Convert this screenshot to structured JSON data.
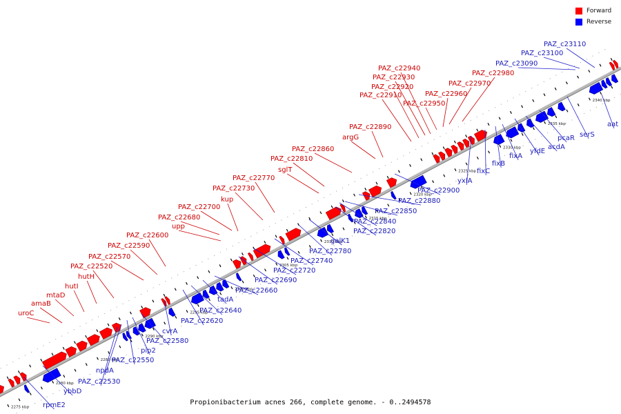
{
  "legend": {
    "forward_label": "Forward",
    "reverse_label": "Reverse"
  },
  "colors": {
    "forward": "#ff0000",
    "reverse": "#0000ff",
    "forward_label": "#cc0000",
    "reverse_label": "#1a1ab8",
    "backbone": "#b8b8b8"
  },
  "caption": "Propionibacterium acnes 266, complete genome. - 0..2494578",
  "chart_data": {
    "type": "genome-map",
    "range_kbp": [
      2273,
      2343
    ],
    "scale_labels": [
      {
        "kbp": 2275,
        "label": "2275 kbp"
      },
      {
        "kbp": 2280,
        "label": "2280 kbp"
      },
      {
        "kbp": 2285,
        "label": "2285 kbp"
      },
      {
        "kbp": 2290,
        "label": "2290 kbp"
      },
      {
        "kbp": 2295,
        "label": "2295 kbp"
      },
      {
        "kbp": 2300,
        "label": "2300 kbp"
      },
      {
        "kbp": 2305,
        "label": "2305 kbp"
      },
      {
        "kbp": 2310,
        "label": "2310 kbp"
      },
      {
        "kbp": 2315,
        "label": "2315 kbp"
      },
      {
        "kbp": 2320,
        "label": "2320 kbp"
      },
      {
        "kbp": 2325,
        "label": "2325 kbp"
      },
      {
        "kbp": 2330,
        "label": "2330 kbp"
      },
      {
        "kbp": 2335,
        "label": "2335 kbp"
      },
      {
        "kbp": 2340,
        "label": "2340 kbp"
      }
    ],
    "forward_genes": [
      {
        "name": "",
        "start": 2273.0,
        "end": 2274.5
      },
      {
        "name": "",
        "start": 2275.2,
        "end": 2275.6
      },
      {
        "name": "",
        "start": 2275.8,
        "end": 2276.3
      },
      {
        "name": "",
        "start": 2276.5,
        "end": 2277.0
      },
      {
        "name": "uroC",
        "start": 2279.0,
        "end": 2281.5
      },
      {
        "name": "amaB",
        "start": 2281.6,
        "end": 2282.6
      },
      {
        "name": "mtaD",
        "start": 2282.8,
        "end": 2283.8
      },
      {
        "name": "hutI",
        "start": 2284.0,
        "end": 2285.2
      },
      {
        "name": "hutH",
        "start": 2285.4,
        "end": 2286.6
      },
      {
        "name": "PAZ_c22520",
        "start": 2286.8,
        "end": 2287.6
      },
      {
        "name": "PAZ_c22570",
        "start": 2289.9,
        "end": 2290.9
      },
      {
        "name": "PAZ_c22590",
        "start": 2292.3,
        "end": 2292.6
      },
      {
        "name": "PAZ_c22600",
        "start": 2292.7,
        "end": 2293.0
      },
      {
        "name": "PAZ_c22680",
        "start": 2300.3,
        "end": 2301.0
      },
      {
        "name": "upp",
        "start": 2301.1,
        "end": 2301.6
      },
      {
        "name": "PAZ_c22700",
        "start": 2302.0,
        "end": 2302.3
      },
      {
        "name": "kup",
        "start": 2302.6,
        "end": 2304.3
      },
      {
        "name": "PAZ_c22730",
        "start": 2305.5,
        "end": 2305.8
      },
      {
        "name": "PAZ_c22770",
        "start": 2306.2,
        "end": 2307.7
      },
      {
        "name": "sglT",
        "start": 2310.7,
        "end": 2312.2
      },
      {
        "name": "PAZ_c22810",
        "start": 2312.3,
        "end": 2312.6
      },
      {
        "name": "PAZ_c22860",
        "start": 2314.8,
        "end": 2315.4
      },
      {
        "name": "argG",
        "start": 2315.5,
        "end": 2316.7
      },
      {
        "name": "PAZ_c22890",
        "start": 2317.5,
        "end": 2318.4
      },
      {
        "name": "PAZ_c22910",
        "start": 2322.7,
        "end": 2323.2
      },
      {
        "name": "PAZ_c22920",
        "start": 2323.3,
        "end": 2323.8
      },
      {
        "name": "PAZ_c22930",
        "start": 2324.0,
        "end": 2324.6
      },
      {
        "name": "PAZ_c22940",
        "start": 2324.7,
        "end": 2325.2
      },
      {
        "name": "PAZ_c22950",
        "start": 2325.4,
        "end": 2325.9
      },
      {
        "name": "PAZ_c22960",
        "start": 2326.0,
        "end": 2326.5
      },
      {
        "name": "PAZ_c22970",
        "start": 2326.6,
        "end": 2327.1
      },
      {
        "name": "PAZ_c22980",
        "start": 2327.3,
        "end": 2328.5
      },
      {
        "name": "",
        "start": 2342.4,
        "end": 2342.7
      },
      {
        "name": "",
        "start": 2342.8,
        "end": 2343.1
      }
    ],
    "reverse_genes": [
      {
        "name": "rpmE2",
        "start": 2276.2,
        "end": 2276.5
      },
      {
        "name": "ybbD",
        "start": 2278.2,
        "end": 2280.0
      },
      {
        "name": "PAZ_c22530",
        "start": 2287.2,
        "end": 2287.5
      },
      {
        "name": "npdA",
        "start": 2287.6,
        "end": 2287.9
      },
      {
        "name": "PAZ_c22550",
        "start": 2288.3,
        "end": 2288.8
      },
      {
        "name": "pip2",
        "start": 2288.9,
        "end": 2289.5
      },
      {
        "name": "",
        "start": 2289.6,
        "end": 2290.6
      },
      {
        "name": "PAZ_c22580",
        "start": 2292.3,
        "end": 2292.8
      },
      {
        "name": "cvrA",
        "start": 2294.8,
        "end": 2296.0
      },
      {
        "name": "PAZ_c22620",
        "start": 2296.1,
        "end": 2296.6
      },
      {
        "name": "PAZ_c22640",
        "start": 2296.8,
        "end": 2297.5
      },
      {
        "name": "tadA",
        "start": 2297.6,
        "end": 2298.2
      },
      {
        "name": "PAZ_c22660",
        "start": 2298.3,
        "end": 2298.8
      },
      {
        "name": "PAZ_c22690",
        "start": 2299.9,
        "end": 2300.2
      },
      {
        "name": "PAZ_c22720",
        "start": 2304.5,
        "end": 2305.0
      },
      {
        "name": "PAZ_c22740",
        "start": 2305.3,
        "end": 2305.6
      },
      {
        "name": "PAZ_c22780",
        "start": 2308.9,
        "end": 2309.9
      },
      {
        "name": "galK1",
        "start": 2310.0,
        "end": 2310.5
      },
      {
        "name": "PAZ_c22820",
        "start": 2312.4,
        "end": 2312.7
      },
      {
        "name": "PAZ_c22840",
        "start": 2313.1,
        "end": 2313.8
      },
      {
        "name": "PAZ_c22850",
        "start": 2313.9,
        "end": 2314.3
      },
      {
        "name": "PAZ_c22880",
        "start": 2317.2,
        "end": 2317.5
      },
      {
        "name": "PAZ_c22900",
        "start": 2319.3,
        "end": 2320.9
      },
      {
        "name": "yxlA",
        "start": 2328.6,
        "end": 2329.6
      },
      {
        "name": "fixC",
        "start": 2330.0,
        "end": 2331.2
      },
      {
        "name": "fixB",
        "start": 2331.3,
        "end": 2331.9
      },
      {
        "name": "fixA",
        "start": 2332.3,
        "end": 2332.9
      },
      {
        "name": "yfdE",
        "start": 2333.3,
        "end": 2334.5
      },
      {
        "name": "acdA",
        "start": 2334.6,
        "end": 2335.3
      },
      {
        "name": "pcaR",
        "start": 2335.8,
        "end": 2336.4
      },
      {
        "name": "serS",
        "start": 2339.3,
        "end": 2340.6
      },
      {
        "name": "",
        "start": 2340.7,
        "end": 2341.1
      },
      {
        "name": "",
        "start": 2341.2,
        "end": 2341.6
      },
      {
        "name": "aat",
        "start": 2341.8,
        "end": 2342.3
      }
    ],
    "forward_labels": [
      {
        "text": "uroC"
      },
      {
        "text": "amaB"
      },
      {
        "text": "mtaD"
      },
      {
        "text": "hutI"
      },
      {
        "text": "hutH"
      },
      {
        "text": "PAZ_c22520"
      },
      {
        "text": "PAZ_c22570"
      },
      {
        "text": "PAZ_c22590"
      },
      {
        "text": "PAZ_c22600"
      },
      {
        "text": "upp"
      },
      {
        "text": "PAZ_c22680"
      },
      {
        "text": "PAZ_c22700"
      },
      {
        "text": "kup"
      },
      {
        "text": "PAZ_c22730"
      },
      {
        "text": "PAZ_c22770"
      },
      {
        "text": "sglT"
      },
      {
        "text": "PAZ_c22810"
      },
      {
        "text": "PAZ_c22860"
      },
      {
        "text": "argG"
      },
      {
        "text": "PAZ_c22890"
      },
      {
        "text": "PAZ_c22910"
      },
      {
        "text": "PAZ_c22920"
      },
      {
        "text": "PAZ_c22930"
      },
      {
        "text": "PAZ_c22940"
      },
      {
        "text": "PAZ_c22950"
      },
      {
        "text": "PAZ_c22960"
      },
      {
        "text": "PAZ_c22970"
      },
      {
        "text": "PAZ_c22980"
      }
    ],
    "reverse_labels": [
      {
        "text": "rpmE2"
      },
      {
        "text": "ybbD"
      },
      {
        "text": "PAZ_c22530"
      },
      {
        "text": "npdA"
      },
      {
        "text": "PAZ_c22550"
      },
      {
        "text": "pip2"
      },
      {
        "text": "PAZ_c22580"
      },
      {
        "text": "cvrA"
      },
      {
        "text": "PAZ_c22620"
      },
      {
        "text": "PAZ_c22640"
      },
      {
        "text": "tadA"
      },
      {
        "text": "PAZ_c22660"
      },
      {
        "text": "PAZ_c22690"
      },
      {
        "text": "PAZ_c22720"
      },
      {
        "text": "PAZ_c22740"
      },
      {
        "text": "PAZ_c22780"
      },
      {
        "text": "galK1"
      },
      {
        "text": "PAZ_c22820"
      },
      {
        "text": "PAZ_c22840"
      },
      {
        "text": "PAZ_c22850"
      },
      {
        "text": "PAZ_c22880"
      },
      {
        "text": "PAZ_c22900"
      },
      {
        "text": "yxlA"
      },
      {
        "text": "fixC"
      },
      {
        "text": "fixB"
      },
      {
        "text": "fixA"
      },
      {
        "text": "yfdE"
      },
      {
        "text": "acdA"
      },
      {
        "text": "pcaR"
      },
      {
        "text": "serS"
      },
      {
        "text": "aat"
      },
      {
        "text": "PAZ_c23090"
      },
      {
        "text": "PAZ_c23100"
      },
      {
        "text": "PAZ_c23110"
      }
    ]
  }
}
